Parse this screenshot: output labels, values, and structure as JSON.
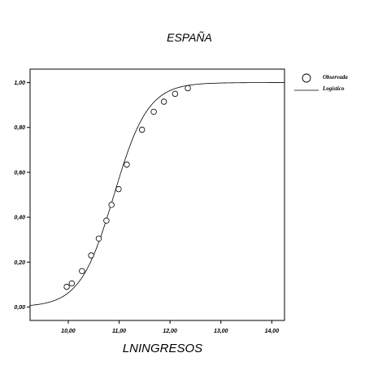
{
  "chart_data": {
    "type": "scatter",
    "title": "ESPAÑA",
    "xlabel": "LNINGRESOS",
    "ylabel": "",
    "xlim": [
      9.25,
      14.25
    ],
    "ylim": [
      -0.06,
      1.06
    ],
    "x_ticks": [
      10,
      11,
      12,
      13,
      14
    ],
    "x_tick_labels": [
      "10,00",
      "11,00",
      "12,00",
      "13,00",
      "14,00"
    ],
    "y_ticks": [
      0,
      0.2,
      0.4,
      0.6,
      0.8,
      1.0
    ],
    "y_tick_labels": [
      "0,00",
      "0,20",
      "0,40",
      "0,60",
      "0,80",
      "1,00"
    ],
    "grid": false,
    "legend": "top-right",
    "series": [
      {
        "name": "Observada",
        "kind": "points",
        "marker": "open-circle",
        "x": [
          9.97,
          10.07,
          10.27,
          10.45,
          10.6,
          10.75,
          10.85,
          10.99,
          11.15,
          11.45,
          11.68,
          11.88,
          12.1,
          12.35
        ],
        "y": [
          0.09,
          0.105,
          0.16,
          0.23,
          0.305,
          0.385,
          0.455,
          0.525,
          0.635,
          0.79,
          0.87,
          0.915,
          0.95,
          0.975
        ]
      },
      {
        "name": "Logístico",
        "kind": "line",
        "model": {
          "midpoint": 10.9,
          "slope": 3.0,
          "upper": 1.0
        },
        "x_range": [
          9.25,
          14.25
        ]
      }
    ]
  }
}
